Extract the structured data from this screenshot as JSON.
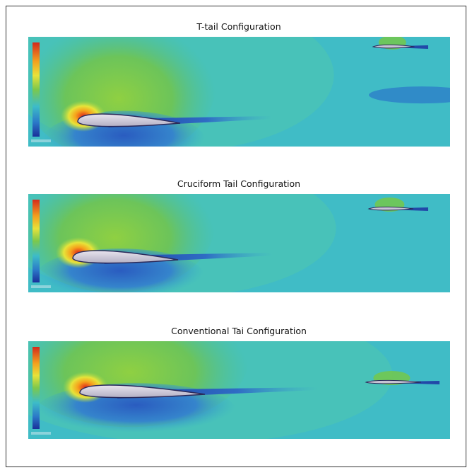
{
  "panels": [
    {
      "title": "T-tail Configuration"
    },
    {
      "title": "Cruciform Tail Configuration"
    },
    {
      "title": "Conventional Tai Configuration"
    }
  ]
}
